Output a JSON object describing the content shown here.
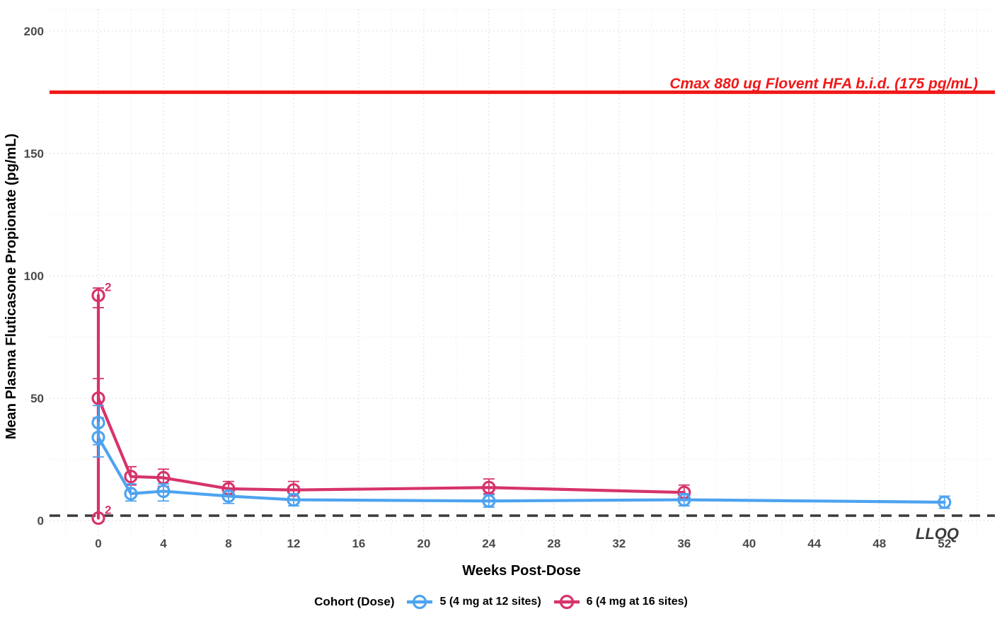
{
  "colors": {
    "cohort5_blue": "#4DA3F0",
    "cohort6_pink": "#D6336C",
    "cmax_red": "#F01818",
    "lloq_gray": "#3A3A3A",
    "grid_major": "#D9D9D9",
    "grid_minor": "#ECECEC",
    "tick_label_gray": "#4A4A4A"
  },
  "chart_data": {
    "type": "line",
    "title": "",
    "xlabel": "Weeks Post-Dose",
    "ylabel": "Mean Plasma Fluticasone Propionate (pg/mL)",
    "xlim": [
      -3,
      55.1
    ],
    "ylim": [
      -5.5,
      208.9
    ],
    "x_ticks": [
      0,
      4,
      8,
      12,
      16,
      20,
      24,
      28,
      32,
      36,
      40,
      44,
      48,
      52
    ],
    "x_minor_ticks": [
      -2,
      2,
      6,
      10,
      14,
      18,
      22,
      26,
      30,
      34,
      38,
      42,
      46,
      50,
      54
    ],
    "y_ticks": [
      0,
      50,
      100,
      150,
      200
    ],
    "y_minor_ticks": [
      25,
      75,
      125,
      175
    ],
    "grid": true,
    "legend_title": "Cohort (Dose)",
    "legend_position": "bottom-center",
    "series": [
      {
        "name": "5 (4 mg at 12 sites)",
        "color_key": "cohort5_blue",
        "points": [
          {
            "x": 0,
            "y": 40,
            "lo": 31,
            "hi": 47
          },
          {
            "x": 0,
            "y": 34,
            "lo": 26,
            "hi": 42
          },
          {
            "x": 2,
            "y": 11,
            "lo": 8,
            "hi": 15
          },
          {
            "x": 4,
            "y": 12,
            "lo": 8,
            "hi": 15
          },
          {
            "x": 8,
            "y": 10,
            "lo": 7,
            "hi": 12
          },
          {
            "x": 12,
            "y": 8.5,
            "lo": 6,
            "hi": 11
          },
          {
            "x": 24,
            "y": 8,
            "lo": 5.5,
            "hi": 10.5
          },
          {
            "x": 36,
            "y": 8.5,
            "lo": 6,
            "hi": 11
          },
          {
            "x": 52,
            "y": 7.5,
            "lo": 5,
            "hi": 10
          }
        ]
      },
      {
        "name": "6 (4 mg at 16 sites)",
        "color_key": "cohort6_pink",
        "points": [
          {
            "x": 0,
            "y": 1,
            "lo": 1,
            "hi": 1,
            "flag": "2"
          },
          {
            "x": 0,
            "y": 92,
            "lo": 87,
            "hi": 95,
            "flag": "2"
          },
          {
            "x": 0,
            "y": 50,
            "lo": 42,
            "hi": 58
          },
          {
            "x": 2,
            "y": 18,
            "lo": 14.5,
            "hi": 22
          },
          {
            "x": 4,
            "y": 17.5,
            "lo": 14,
            "hi": 21
          },
          {
            "x": 8,
            "y": 13,
            "lo": 10.5,
            "hi": 16
          },
          {
            "x": 12,
            "y": 12.5,
            "lo": 10,
            "hi": 16
          },
          {
            "x": 24,
            "y": 13.5,
            "lo": 11,
            "hi": 17
          },
          {
            "x": 36,
            "y": 11.5,
            "lo": 9,
            "hi": 14.5
          }
        ]
      }
    ],
    "reference_lines": [
      {
        "id": "cmax",
        "y": 175,
        "style": "solid",
        "label": "Cmax 880 ug Flovent HFA b.i.d. (175 pg/mL)",
        "color_key": "cmax_red"
      },
      {
        "id": "lloq",
        "y": 2,
        "style": "dashed",
        "label": "LLOQ",
        "color_key": "lloq_gray"
      }
    ]
  }
}
